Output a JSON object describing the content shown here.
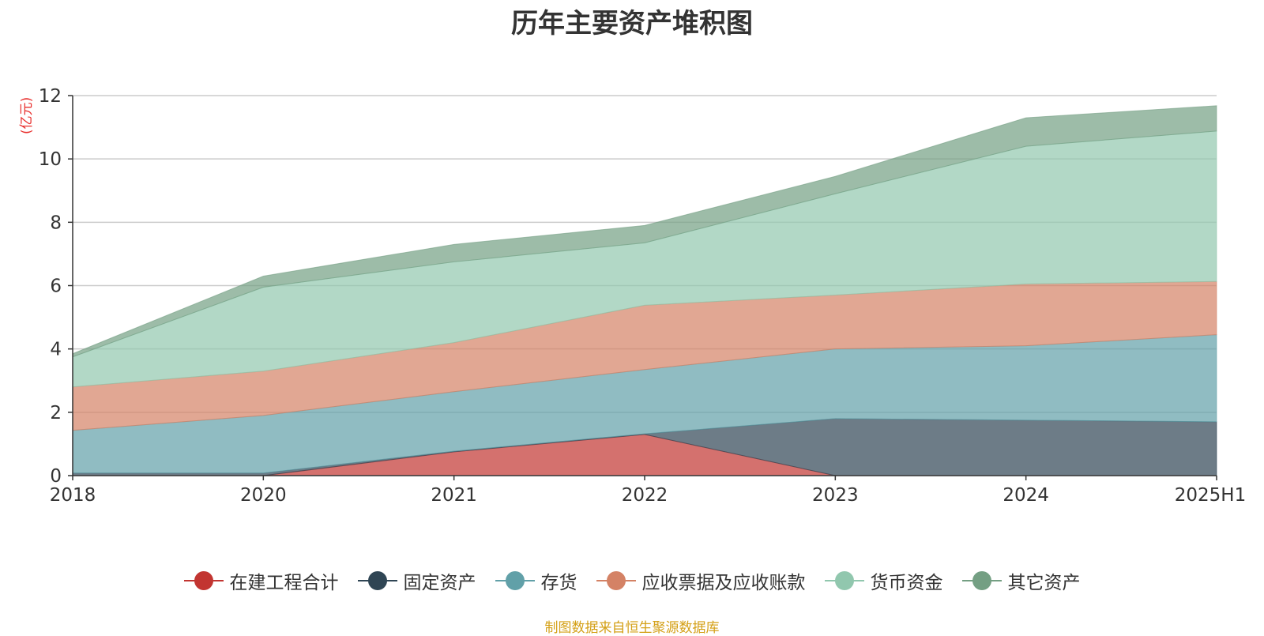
{
  "chart_data": {
    "type": "area",
    "stacked": true,
    "title": "历年主要资产堆积图",
    "unit": "(亿元)",
    "categories": [
      "2018",
      "2020",
      "2021",
      "2022",
      "2023",
      "2024",
      "2025H1"
    ],
    "ylim": [
      0,
      12
    ],
    "yticks": [
      0,
      2,
      4,
      6,
      8,
      10,
      12
    ],
    "grid": true,
    "legend_position": "bottom",
    "series": [
      {
        "name": "在建工程合计",
        "color": "#c23531",
        "values": [
          0.0,
          0.0,
          0.75,
          1.3,
          0.0,
          0.0,
          0.0
        ]
      },
      {
        "name": "固定资产",
        "color": "#2f4554",
        "values": [
          0.08,
          0.08,
          0.02,
          0.02,
          1.8,
          1.75,
          1.7
        ]
      },
      {
        "name": "存货",
        "color": "#61a0a8",
        "values": [
          1.35,
          1.82,
          1.88,
          2.03,
          2.2,
          2.35,
          2.75
        ]
      },
      {
        "name": "应收票据及应收账款",
        "color": "#d48265",
        "values": [
          1.37,
          1.4,
          1.55,
          2.03,
          1.7,
          1.95,
          1.68
        ]
      },
      {
        "name": "货币资金",
        "color": "#91c7ae",
        "values": [
          0.95,
          2.65,
          2.55,
          1.97,
          3.2,
          4.35,
          4.75
        ]
      },
      {
        "name": "其它资产",
        "color": "#749f83",
        "values": [
          0.1,
          0.35,
          0.55,
          0.55,
          0.55,
          0.9,
          0.8
        ]
      }
    ]
  },
  "source": "制图数据来自恒生聚源数据库"
}
